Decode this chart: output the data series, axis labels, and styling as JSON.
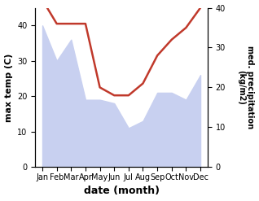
{
  "months": [
    "Jan",
    "Feb",
    "Mar",
    "Apr",
    "May",
    "Jun",
    "Jul",
    "Aug",
    "Sep",
    "Oct",
    "Nov",
    "Dec"
  ],
  "x": [
    0,
    1,
    2,
    3,
    4,
    5,
    6,
    7,
    8,
    9,
    10,
    11
  ],
  "temp": [
    40,
    30,
    36,
    19,
    19,
    18,
    11,
    13,
    21,
    21,
    19,
    26
  ],
  "precip": [
    42,
    36,
    36,
    36,
    20,
    18,
    18,
    21,
    28,
    32,
    35,
    40
  ],
  "precip_color": "#c0392b",
  "temp_fill_color": "#c8d0f0",
  "left_ylabel": "max temp (C)",
  "right_ylabel": "med. precipitation\n(kg/m2)",
  "xlabel": "date (month)",
  "ylim_left": [
    0,
    45
  ],
  "ylim_right": [
    0,
    40
  ],
  "yticks_left": [
    0,
    10,
    20,
    30,
    40
  ],
  "yticks_right": [
    0,
    10,
    20,
    30,
    40
  ],
  "fig_width": 3.18,
  "fig_height": 2.47,
  "dpi": 100
}
